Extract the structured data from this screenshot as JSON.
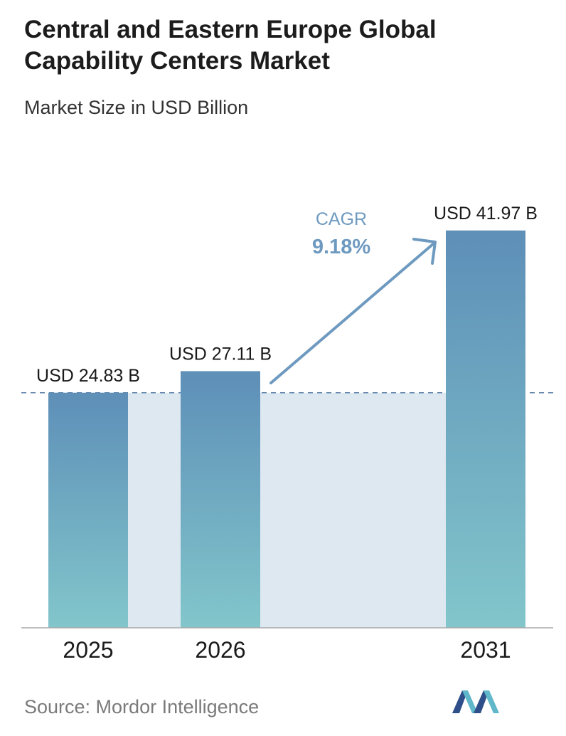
{
  "header": {
    "title": "Central and Eastern Europe Global Capability Centers Market",
    "subtitle": "Market Size in USD Billion"
  },
  "chart_data": {
    "type": "bar",
    "title": "Central and Eastern Europe Global Capability Centers Market",
    "subtitle": "Market Size in USD Billion",
    "categories": [
      "2025",
      "2026",
      "2031"
    ],
    "values": [
      24.83,
      27.11,
      41.97
    ],
    "value_labels": [
      "USD 24.83 B",
      "USD 27.11 B",
      "USD 41.97 B"
    ],
    "xlabel": "",
    "ylabel": "",
    "annotation": {
      "label": "CAGR",
      "value": "9.18%"
    },
    "reference_line_value": 24.83,
    "grid": false,
    "colors": {
      "bar_top": "#5e8fb8",
      "bar_bottom": "#82c6cb",
      "band": "#dde8f1",
      "accent": "#6e9ac0"
    }
  },
  "footer": {
    "source": "Source:  Mordor Intelligence",
    "logo_icon": "mordor-intelligence-logo-icon"
  }
}
